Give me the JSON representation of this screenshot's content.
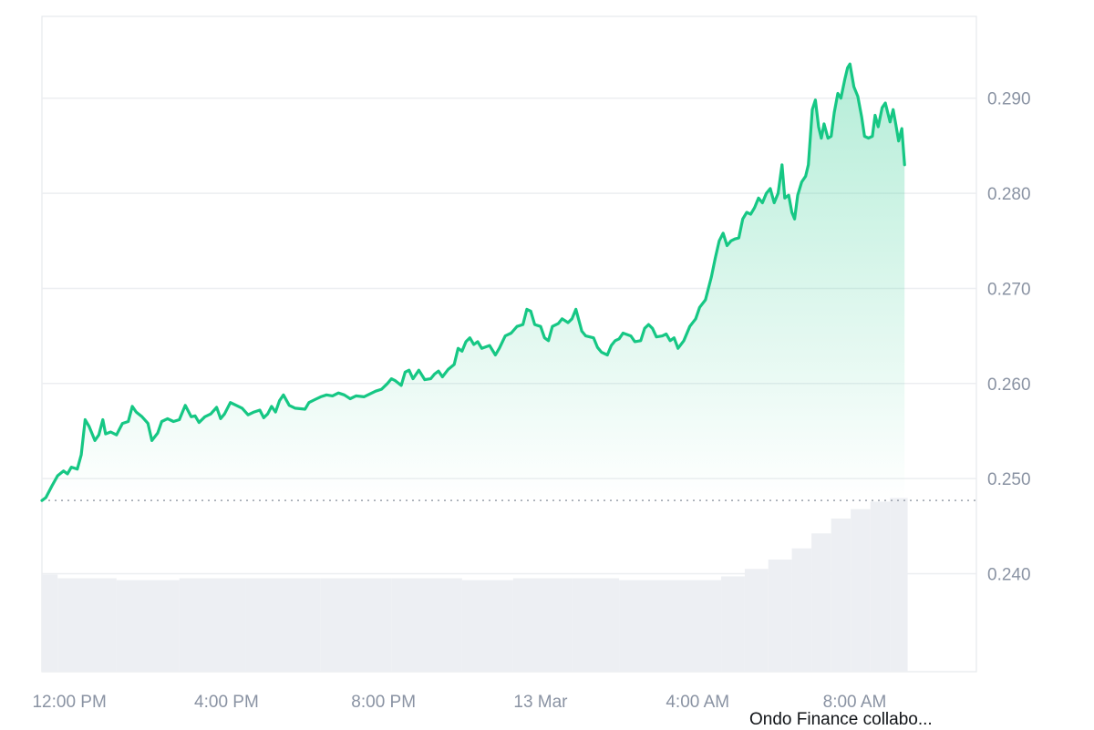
{
  "chart_data": {
    "type": "area",
    "y_ticks": [
      0.24,
      0.25,
      0.26,
      0.27,
      0.28,
      0.29
    ],
    "y_tick_labels": [
      "0.240",
      "0.250",
      "0.260",
      "0.270",
      "0.280",
      "0.290"
    ],
    "ylim": [
      0.2297,
      0.2986
    ],
    "x_tick_labels": [
      "12:00 PM",
      "4:00 PM",
      "8:00 PM",
      "13 Mar",
      "4:00 AM",
      "8:00 AM"
    ],
    "x_tick_hours": [
      12,
      16,
      20,
      24,
      28,
      32
    ],
    "xlim_hours": [
      11.3,
      35.1
    ],
    "reference_price": 0.2477,
    "line_color": "#16c784",
    "series": [
      {
        "values": [
          [
            11.3,
            0.2477
          ],
          [
            11.4,
            0.248
          ],
          [
            11.55,
            0.2492
          ],
          [
            11.7,
            0.2503
          ],
          [
            11.85,
            0.2508
          ],
          [
            11.95,
            0.2505
          ],
          [
            12.05,
            0.2512
          ],
          [
            12.2,
            0.251
          ],
          [
            12.3,
            0.2525
          ],
          [
            12.4,
            0.2562
          ],
          [
            12.5,
            0.2555
          ],
          [
            12.65,
            0.254
          ],
          [
            12.75,
            0.2546
          ],
          [
            12.85,
            0.2562
          ],
          [
            12.92,
            0.2547
          ],
          [
            13.05,
            0.2549
          ],
          [
            13.2,
            0.2546
          ],
          [
            13.35,
            0.2558
          ],
          [
            13.5,
            0.256
          ],
          [
            13.6,
            0.2576
          ],
          [
            13.7,
            0.257
          ],
          [
            13.85,
            0.2565
          ],
          [
            14.0,
            0.2558
          ],
          [
            14.1,
            0.254
          ],
          [
            14.25,
            0.2548
          ],
          [
            14.35,
            0.256
          ],
          [
            14.5,
            0.2563
          ],
          [
            14.65,
            0.256
          ],
          [
            14.8,
            0.2562
          ],
          [
            14.95,
            0.2577
          ],
          [
            15.1,
            0.2565
          ],
          [
            15.2,
            0.2566
          ],
          [
            15.3,
            0.2559
          ],
          [
            15.45,
            0.2565
          ],
          [
            15.6,
            0.2568
          ],
          [
            15.75,
            0.2575
          ],
          [
            15.85,
            0.2563
          ],
          [
            15.95,
            0.2568
          ],
          [
            16.1,
            0.258
          ],
          [
            16.25,
            0.2577
          ],
          [
            16.4,
            0.2574
          ],
          [
            16.55,
            0.2567
          ],
          [
            16.7,
            0.257
          ],
          [
            16.85,
            0.2572
          ],
          [
            16.95,
            0.2564
          ],
          [
            17.05,
            0.2568
          ],
          [
            17.15,
            0.2576
          ],
          [
            17.25,
            0.257
          ],
          [
            17.35,
            0.2582
          ],
          [
            17.45,
            0.2588
          ],
          [
            17.6,
            0.2577
          ],
          [
            17.75,
            0.2574
          ],
          [
            18.0,
            0.2573
          ],
          [
            18.1,
            0.258
          ],
          [
            18.25,
            0.2583
          ],
          [
            18.4,
            0.2586
          ],
          [
            18.55,
            0.2588
          ],
          [
            18.7,
            0.2587
          ],
          [
            18.85,
            0.259
          ],
          [
            19.0,
            0.2588
          ],
          [
            19.15,
            0.2584
          ],
          [
            19.3,
            0.2587
          ],
          [
            19.5,
            0.2586
          ],
          [
            19.65,
            0.2589
          ],
          [
            19.8,
            0.2592
          ],
          [
            19.95,
            0.2594
          ],
          [
            20.1,
            0.26
          ],
          [
            20.2,
            0.2605
          ],
          [
            20.3,
            0.2603
          ],
          [
            20.45,
            0.2598
          ],
          [
            20.55,
            0.2612
          ],
          [
            20.65,
            0.2614
          ],
          [
            20.75,
            0.2605
          ],
          [
            20.9,
            0.2614
          ],
          [
            21.05,
            0.2604
          ],
          [
            21.2,
            0.2605
          ],
          [
            21.3,
            0.261
          ],
          [
            21.4,
            0.2613
          ],
          [
            21.5,
            0.2607
          ],
          [
            21.65,
            0.2615
          ],
          [
            21.8,
            0.262
          ],
          [
            21.9,
            0.2637
          ],
          [
            22.0,
            0.2634
          ],
          [
            22.1,
            0.2644
          ],
          [
            22.2,
            0.2648
          ],
          [
            22.3,
            0.2641
          ],
          [
            22.4,
            0.2644
          ],
          [
            22.5,
            0.2637
          ],
          [
            22.7,
            0.264
          ],
          [
            22.85,
            0.263
          ],
          [
            22.95,
            0.2637
          ],
          [
            23.1,
            0.265
          ],
          [
            23.25,
            0.2653
          ],
          [
            23.4,
            0.266
          ],
          [
            23.55,
            0.2662
          ],
          [
            23.65,
            0.2678
          ],
          [
            23.75,
            0.2676
          ],
          [
            23.85,
            0.2662
          ],
          [
            24.0,
            0.266
          ],
          [
            24.1,
            0.2648
          ],
          [
            24.2,
            0.2645
          ],
          [
            24.3,
            0.266
          ],
          [
            24.45,
            0.2663
          ],
          [
            24.55,
            0.2668
          ],
          [
            24.7,
            0.2664
          ],
          [
            24.8,
            0.2668
          ],
          [
            24.9,
            0.2678
          ],
          [
            25.05,
            0.2655
          ],
          [
            25.15,
            0.265
          ],
          [
            25.35,
            0.2648
          ],
          [
            25.45,
            0.2638
          ],
          [
            25.55,
            0.2633
          ],
          [
            25.7,
            0.263
          ],
          [
            25.8,
            0.264
          ],
          [
            25.9,
            0.2645
          ],
          [
            26.0,
            0.2647
          ],
          [
            26.1,
            0.2653
          ],
          [
            26.3,
            0.265
          ],
          [
            26.4,
            0.2644
          ],
          [
            26.55,
            0.2645
          ],
          [
            26.65,
            0.2658
          ],
          [
            26.75,
            0.2662
          ],
          [
            26.85,
            0.2658
          ],
          [
            26.95,
            0.2649
          ],
          [
            27.1,
            0.265
          ],
          [
            27.2,
            0.2652
          ],
          [
            27.3,
            0.2645
          ],
          [
            27.4,
            0.2648
          ],
          [
            27.5,
            0.2637
          ],
          [
            27.65,
            0.2645
          ],
          [
            27.8,
            0.266
          ],
          [
            27.95,
            0.2668
          ],
          [
            28.05,
            0.268
          ],
          [
            28.2,
            0.2688
          ],
          [
            28.35,
            0.2712
          ],
          [
            28.45,
            0.2732
          ],
          [
            28.55,
            0.275
          ],
          [
            28.65,
            0.2758
          ],
          [
            28.75,
            0.2745
          ],
          [
            28.85,
            0.275
          ],
          [
            28.95,
            0.2752
          ],
          [
            29.05,
            0.2753
          ],
          [
            29.15,
            0.2773
          ],
          [
            29.25,
            0.278
          ],
          [
            29.35,
            0.2778
          ],
          [
            29.45,
            0.2785
          ],
          [
            29.55,
            0.2795
          ],
          [
            29.65,
            0.279
          ],
          [
            29.75,
            0.28
          ],
          [
            29.85,
            0.2805
          ],
          [
            29.95,
            0.279
          ],
          [
            30.05,
            0.28
          ],
          [
            30.15,
            0.283
          ],
          [
            30.22,
            0.2795
          ],
          [
            30.32,
            0.2798
          ],
          [
            30.4,
            0.278
          ],
          [
            30.47,
            0.2773
          ],
          [
            30.55,
            0.2798
          ],
          [
            30.65,
            0.2812
          ],
          [
            30.75,
            0.2818
          ],
          [
            30.82,
            0.283
          ],
          [
            30.92,
            0.2888
          ],
          [
            31.0,
            0.2898
          ],
          [
            31.08,
            0.287
          ],
          [
            31.15,
            0.2858
          ],
          [
            31.22,
            0.2873
          ],
          [
            31.32,
            0.2858
          ],
          [
            31.4,
            0.286
          ],
          [
            31.48,
            0.2885
          ],
          [
            31.57,
            0.2905
          ],
          [
            31.65,
            0.29
          ],
          [
            31.75,
            0.292
          ],
          [
            31.82,
            0.2932
          ],
          [
            31.88,
            0.2936
          ],
          [
            31.98,
            0.2912
          ],
          [
            32.08,
            0.2902
          ],
          [
            32.18,
            0.288
          ],
          [
            32.25,
            0.286
          ],
          [
            32.35,
            0.2858
          ],
          [
            32.45,
            0.286
          ],
          [
            32.52,
            0.2882
          ],
          [
            32.6,
            0.287
          ],
          [
            32.7,
            0.289
          ],
          [
            32.78,
            0.2895
          ],
          [
            32.9,
            0.2875
          ],
          [
            32.98,
            0.2888
          ],
          [
            33.05,
            0.2872
          ],
          [
            33.12,
            0.2855
          ],
          [
            33.2,
            0.2868
          ],
          [
            33.27,
            0.283
          ]
        ]
      }
    ],
    "volume_bars": [
      [
        11.3,
        11.7,
        0.52
      ],
      [
        11.7,
        13.2,
        0.5
      ],
      [
        13.2,
        14.8,
        0.49
      ],
      [
        14.8,
        16.5,
        0.5
      ],
      [
        16.5,
        18.4,
        0.5
      ],
      [
        18.4,
        20.2,
        0.5
      ],
      [
        20.2,
        22.0,
        0.5
      ],
      [
        22.0,
        23.3,
        0.49
      ],
      [
        23.3,
        24.8,
        0.5
      ],
      [
        24.8,
        26.0,
        0.5
      ],
      [
        26.0,
        27.6,
        0.49
      ],
      [
        27.6,
        28.6,
        0.49
      ],
      [
        28.6,
        29.2,
        0.51
      ],
      [
        29.2,
        29.8,
        0.55
      ],
      [
        29.8,
        30.4,
        0.6
      ],
      [
        30.4,
        30.9,
        0.66
      ],
      [
        30.9,
        31.4,
        0.74
      ],
      [
        31.4,
        31.9,
        0.82
      ],
      [
        31.9,
        32.4,
        0.87
      ],
      [
        32.4,
        32.9,
        0.91
      ],
      [
        32.9,
        33.35,
        0.93
      ]
    ]
  },
  "news": {
    "headline": "Ondo Finance collabo..."
  }
}
